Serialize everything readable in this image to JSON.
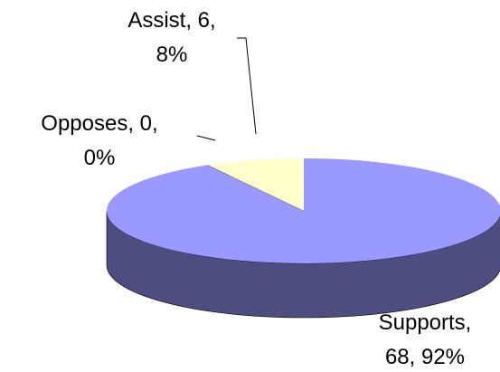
{
  "chart_data": {
    "type": "pie3d",
    "categories": [
      "Supports",
      "Opposes",
      "Assist"
    ],
    "values": [
      68,
      0,
      6
    ],
    "value_labels": [
      "Supports, 68, 92%",
      "Opposes, 0, 0%",
      "Assist, 6, 8%"
    ],
    "colors": [
      "#9999ff",
      "#993366",
      "#ffffcc"
    ]
  }
}
